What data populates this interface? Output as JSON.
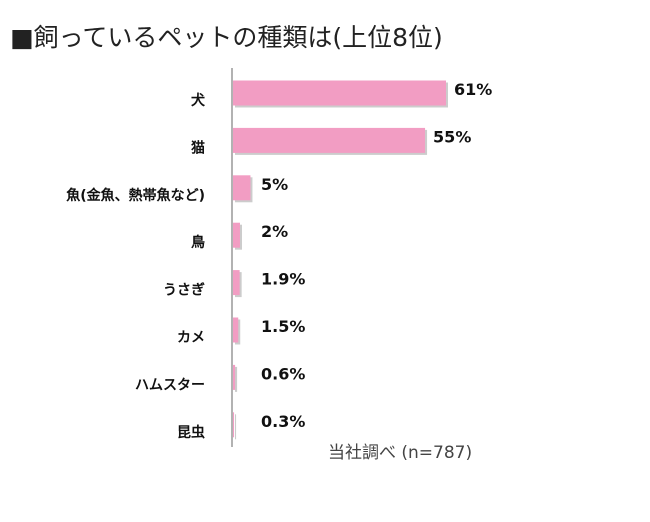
{
  "chart_data": {
    "type": "bar",
    "orientation": "horizontal",
    "title": "■飼っているペットの種類は(上位8位)",
    "categories": [
      "犬",
      "猫",
      "魚(金魚、熱帯魚など)",
      "鳥",
      "うさぎ",
      "カメ",
      "ハムスター",
      "昆虫"
    ],
    "values": [
      61,
      55,
      5,
      2,
      1.9,
      1.5,
      0.6,
      0.3
    ],
    "value_labels": [
      "61%",
      "55%",
      "5%",
      "2%",
      "1.9%",
      "1.5%",
      "0.6%",
      "0.3%"
    ],
    "unit": "%",
    "xlim": [
      0,
      61
    ],
    "grid": false,
    "bar_color": "#f29dc3",
    "note": "当社調べ (n=787)"
  }
}
